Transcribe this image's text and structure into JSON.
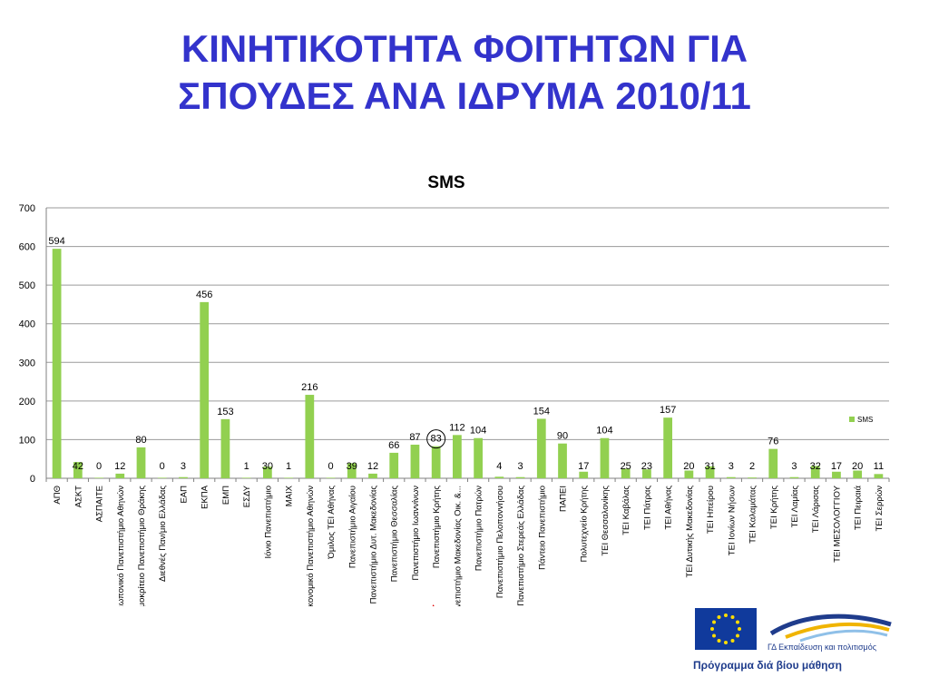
{
  "slide": {
    "title_line1": "ΚΙΝΗΤΙΚΟΤΗΤΑ ΦΟΙΤΗΤΩΝ ΓΙΑ",
    "title_line2": "ΣΠΟΥΔΕΣ ΑΝΑ ΙΔΡΥΜΑ 2010/11"
  },
  "chart_data": {
    "type": "bar",
    "title": "SMS",
    "xlabel": "",
    "ylabel": "",
    "ylim": [
      0,
      700
    ],
    "yticks": [
      0,
      100,
      200,
      300,
      400,
      500,
      600,
      700
    ],
    "grid": true,
    "legend_position": "right",
    "categories": [
      "ΑΠΘ",
      "ΑΣΚΤ",
      "ΑΣΠΑΙΤΕ",
      "Γεωπονικό Πανεπιστήμιο Αθηνών",
      "Δημοκρίτειο Πανεπιστήμιο Θράκης",
      "Διεθνές Παν/μιο Ελλάδας",
      "ΕΑΠ",
      "ΕΚΠΑ",
      "ΕΜΠ",
      "ΕΣΔΥ",
      "Ιόνιο Πανεπιστήμιο",
      "ΜΑΙΧ",
      "Οικονομικό Πανεπιστήμιο Αθηνών",
      "Όμιλος ΤΕΙ Αθήνας",
      "Πανεπιστήμιο Αιγαίου",
      "Πανεπιστήμιο Δυτ. Μακεδονίας",
      "Πανεπιστήμιο Θεσσαλίας",
      "Πανεπιστήμιο Ιωαννίνων",
      "Πανεπιστήμιο Κρήτης",
      "Πανεπιστήμιο Μακεδονίας Οικ. &...",
      "Πανεπιστήμιο Πατρών",
      "Πανεπιστήμιο Πελοποννήσου",
      "Πανεπιστήμιο Στερεάς Ελλάδας",
      "Πάντειο Πανεπιστήμιο",
      "ΠΑΠΕΙ",
      "Πολυτεχνείο Κρήτης",
      "ΤΕΙ Θεσσαλονίκης",
      "ΤΕΙ Καβάλας",
      "ΤΕΙ Πάτρας",
      "ΤΕΙ Αθήνας",
      "ΤΕΙ Δυτικής Μακεδονίας",
      "ΤΕΙ Ηπείρου",
      "ΤΕΙ Ιονίων Νήσων",
      "ΤΕΙ Καλαμάτας",
      "ΤΕΙ Κρήτης",
      "ΤΕΙ Λαμίας",
      "ΤΕΙ Λάρισας",
      "ΤΕΙ ΜΕΣΟΛΟΓΓΙΟΥ",
      "ΤΕΙ Πειραιά",
      "ΤΕΙ Σερρών"
    ],
    "series": [
      {
        "name": "SMS",
        "color": "#92d050",
        "values": [
          594,
          42,
          0,
          12,
          80,
          0,
          3,
          456,
          153,
          1,
          30,
          1,
          216,
          0,
          39,
          12,
          66,
          87,
          83,
          112,
          104,
          4,
          3,
          154,
          90,
          17,
          104,
          25,
          23,
          157,
          20,
          31,
          3,
          2,
          76,
          3,
          32,
          17,
          20,
          11
        ]
      }
    ],
    "highlight": {
      "category": "Πανεπιστήμιο Κρήτης",
      "marker": "circle-and-arrow",
      "arrow_color": "#e00000"
    }
  },
  "footer": {
    "logo_text": "ΓΔ Εκπαίδευση και πολιτισμός",
    "program_text": "Πρόγραμμα διά βίου μάθηση"
  }
}
